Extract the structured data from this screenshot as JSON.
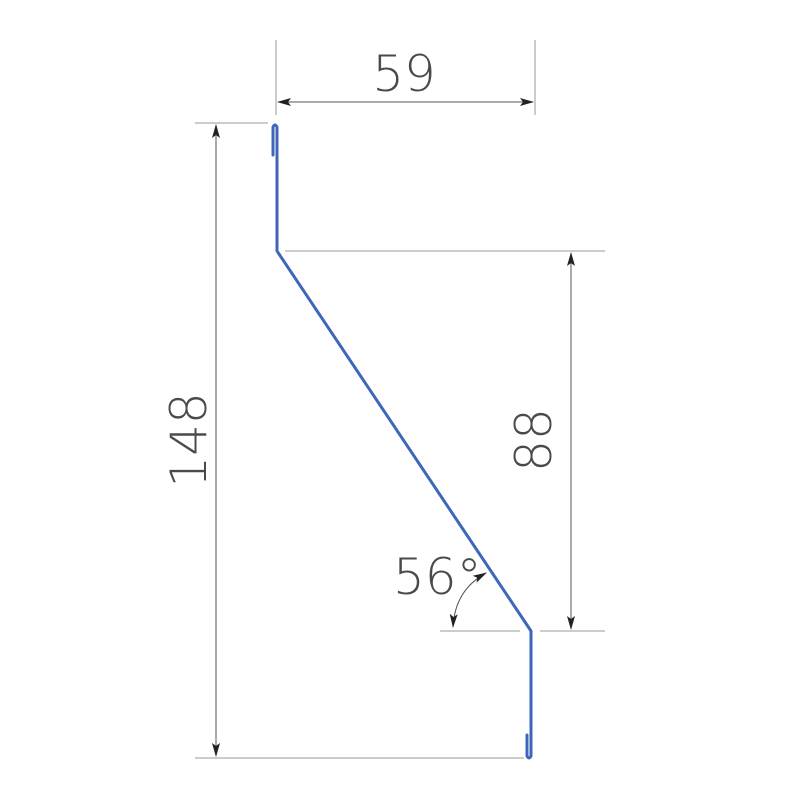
{
  "dimensions": {
    "width_top": "59",
    "total_height": "148",
    "offset_height": "88",
    "angle": "56°"
  },
  "colors": {
    "profile": "#3f66b8",
    "dimension_lines": "#555555",
    "text": "#4a4a4a"
  }
}
